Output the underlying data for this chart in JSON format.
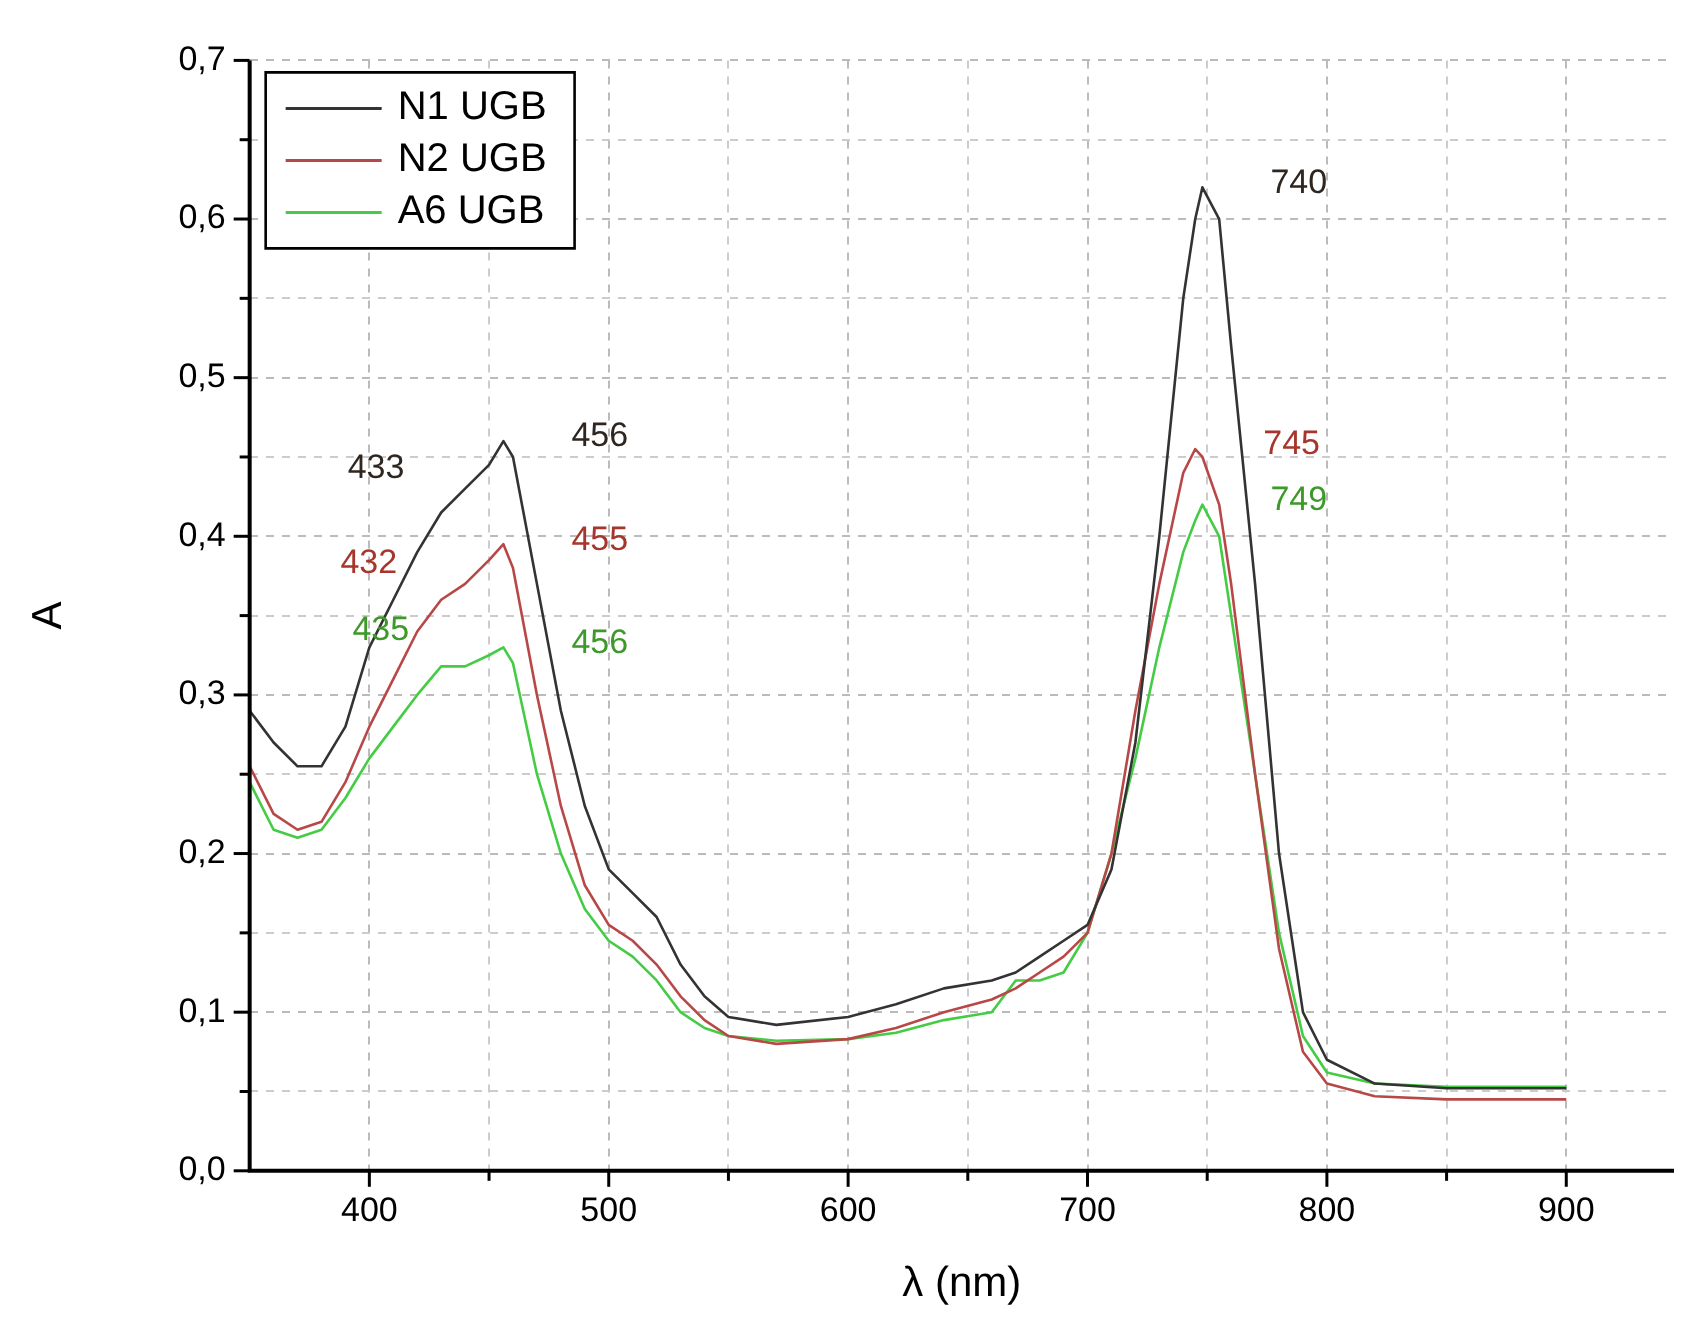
{
  "chart_data": {
    "type": "line",
    "xlabel": "λ (nm)",
    "ylabel": "A",
    "xlim": [
      350,
      945
    ],
    "ylim": [
      0,
      0.7
    ],
    "xticks": [
      400,
      {
        "value": 450,
        "label": null
      },
      500,
      {
        "value": 550,
        "label": null
      },
      600,
      {
        "value": 650,
        "label": null
      },
      700,
      {
        "value": 750,
        "label": null
      },
      800,
      {
        "value": 850,
        "label": null
      },
      900
    ],
    "yticks": [
      {
        "value": 0,
        "label": "0,0"
      },
      {
        "value": 0.05,
        "label": null
      },
      {
        "value": 0.1,
        "label": "0,1"
      },
      {
        "value": 0.15,
        "label": null
      },
      {
        "value": 0.2,
        "label": "0,2"
      },
      {
        "value": 0.25,
        "label": null
      },
      {
        "value": 0.3,
        "label": "0,3"
      },
      {
        "value": 0.35,
        "label": null
      },
      {
        "value": 0.4,
        "label": "0,4"
      },
      {
        "value": 0.45,
        "label": null
      },
      {
        "value": 0.5,
        "label": "0,5"
      },
      {
        "value": 0.55,
        "label": null
      },
      {
        "value": 0.6,
        "label": "0,6"
      },
      {
        "value": 0.65,
        "label": null
      },
      {
        "value": 0.7,
        "label": "0,7"
      }
    ],
    "grid": true,
    "legend": "top left",
    "marker": "none",
    "line_style": "solid",
    "x": [
      350,
      360,
      370,
      380,
      390,
      400,
      410,
      420,
      430,
      440,
      450,
      456,
      460,
      470,
      480,
      490,
      500,
      510,
      520,
      530,
      540,
      550,
      570,
      600,
      620,
      640,
      660,
      670,
      680,
      690,
      700,
      710,
      720,
      730,
      740,
      745,
      748,
      755,
      760,
      770,
      780,
      790,
      800,
      820,
      850,
      900
    ],
    "series": [
      {
        "name": "N1 UGB",
        "color": "#333333",
        "values": [
          0.29,
          0.27,
          0.255,
          0.255,
          0.28,
          0.33,
          0.36,
          0.39,
          0.415,
          0.43,
          0.445,
          0.46,
          0.45,
          0.37,
          0.29,
          0.23,
          0.19,
          0.175,
          0.16,
          0.13,
          0.11,
          0.097,
          0.092,
          0.097,
          0.105,
          0.115,
          0.12,
          0.125,
          0.135,
          0.145,
          0.155,
          0.19,
          0.27,
          0.4,
          0.55,
          0.6,
          0.62,
          0.6,
          0.52,
          0.37,
          0.2,
          0.1,
          0.07,
          0.055,
          0.052,
          0.052
        ]
      },
      {
        "name": "N2 UGB",
        "color": "#b84848",
        "values": [
          0.255,
          0.225,
          0.215,
          0.22,
          0.245,
          0.28,
          0.31,
          0.34,
          0.36,
          0.37,
          0.385,
          0.395,
          0.38,
          0.3,
          0.23,
          0.18,
          0.155,
          0.145,
          0.13,
          0.11,
          0.095,
          0.085,
          0.08,
          0.083,
          0.09,
          0.1,
          0.108,
          0.115,
          0.125,
          0.135,
          0.15,
          0.2,
          0.29,
          0.37,
          0.44,
          0.455,
          0.45,
          0.42,
          0.37,
          0.25,
          0.14,
          0.075,
          0.055,
          0.047,
          0.045,
          0.045
        ]
      },
      {
        "name": "A6 UGB",
        "color": "#44cc44",
        "values": [
          0.245,
          0.215,
          0.21,
          0.215,
          0.235,
          0.26,
          0.28,
          0.3,
          0.318,
          0.318,
          0.325,
          0.33,
          0.32,
          0.25,
          0.2,
          0.165,
          0.145,
          0.135,
          0.12,
          0.1,
          0.09,
          0.085,
          0.082,
          0.083,
          0.087,
          0.095,
          0.1,
          0.12,
          0.12,
          0.125,
          0.15,
          0.2,
          0.26,
          0.33,
          0.39,
          0.41,
          0.42,
          0.4,
          0.35,
          0.25,
          0.15,
          0.085,
          0.062,
          0.055,
          0.053,
          0.053
        ]
      }
    ],
    "annotations": [
      {
        "text": "433",
        "x": 433,
        "y": 0.42
      },
      {
        "text": "456",
        "x": 456,
        "y": 0.46
      },
      {
        "text": "740",
        "x": 748,
        "y": 0.62
      },
      {
        "text": "432",
        "x": 430,
        "y": 0.36
      },
      {
        "text": "455",
        "x": 456,
        "y": 0.395
      },
      {
        "text": "745",
        "x": 745,
        "y": 0.455
      },
      {
        "text": "435",
        "x": 435,
        "y": 0.318
      },
      {
        "text": "456",
        "x": 456,
        "y": 0.33
      },
      {
        "text": "749",
        "x": 748,
        "y": 0.42
      }
    ]
  }
}
